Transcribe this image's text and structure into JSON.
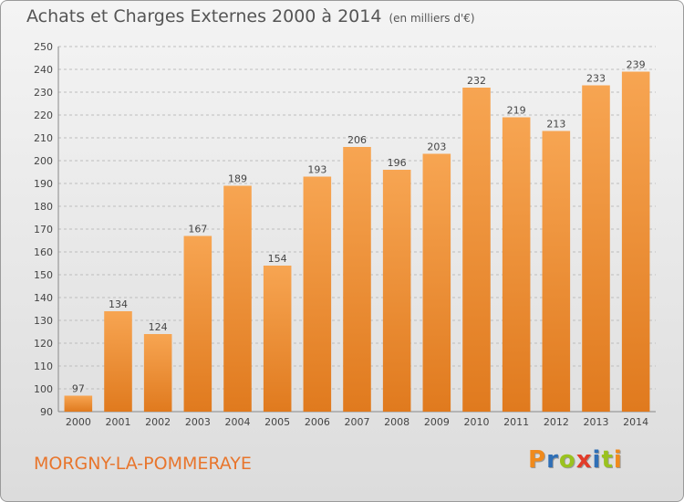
{
  "header": {
    "title": "Achats et Charges Externes 2000 à 2014",
    "unit": "(en milliers d'€)"
  },
  "footer": {
    "city": "MORGNY-LA-POMMERAYE",
    "logo": "Proxiti",
    "logo_colors": [
      "#f08a1c",
      "#2f6fb6",
      "#9ac21f",
      "#e23c2a",
      "#2f6fb6",
      "#9ac21f",
      "#f08a1c"
    ]
  },
  "colors": {
    "bar_light": "#f7a552",
    "bar_dark": "#e07a1e",
    "grid": "#bdbdbd",
    "axis_text": "#444444"
  },
  "chart_data": {
    "type": "bar",
    "categories": [
      "2000",
      "2001",
      "2002",
      "2003",
      "2004",
      "2005",
      "2006",
      "2007",
      "2008",
      "2009",
      "2010",
      "2011",
      "2012",
      "2013",
      "2014"
    ],
    "values": [
      97,
      134,
      124,
      167,
      189,
      154,
      193,
      206,
      196,
      203,
      232,
      219,
      213,
      233,
      239
    ],
    "ylim": [
      90,
      250
    ],
    "yticks": [
      90,
      100,
      110,
      120,
      130,
      140,
      150,
      160,
      170,
      180,
      190,
      200,
      210,
      220,
      230,
      240,
      250
    ],
    "grid": true,
    "legend": "none"
  }
}
